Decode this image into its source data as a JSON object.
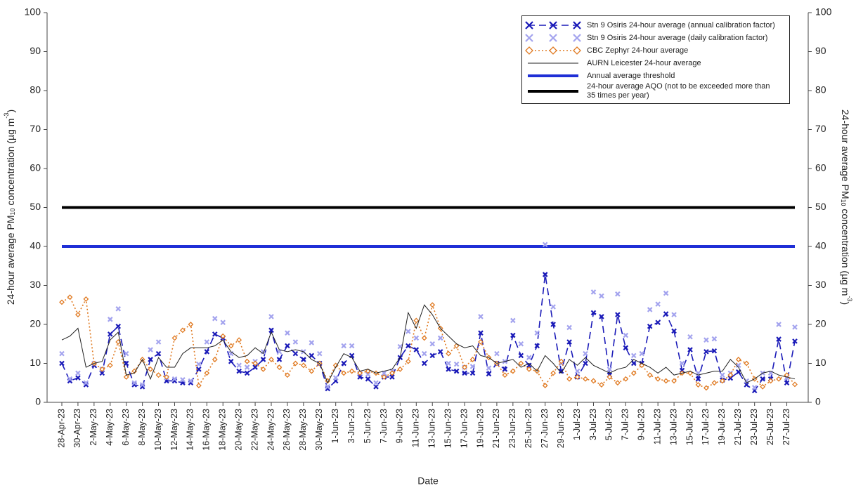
{
  "chart_data": {
    "type": "line",
    "xlabel": "Date",
    "ylabel_parts": [
      "24-hour average PM",
      "10",
      " concentration (µg m",
      "-3",
      ")"
    ],
    "categories": [
      "28-Apr-23",
      null,
      "30-Apr-23",
      null,
      "2-May-23",
      null,
      "4-May-23",
      null,
      "6-May-23",
      null,
      "8-May-23",
      null,
      "10-May-23",
      null,
      "12-May-23",
      null,
      "14-May-23",
      null,
      "16-May-23",
      null,
      "18-May-23",
      null,
      "20-May-23",
      null,
      "22-May-23",
      null,
      "24-May-23",
      null,
      "26-May-23",
      null,
      "28-May-23",
      null,
      "30-May-23",
      null,
      "1-Jun-23",
      null,
      "3-Jun-23",
      null,
      "5-Jun-23",
      null,
      "7-Jun-23",
      null,
      "9-Jun-23",
      null,
      "11-Jun-23",
      null,
      "13-Jun-23",
      null,
      "15-Jun-23",
      null,
      "17-Jun-23",
      null,
      "19-Jun-23",
      null,
      "21-Jun-23",
      null,
      "23-Jun-23",
      null,
      "25-Jun-23",
      null,
      "27-Jun-23",
      null,
      "29-Jun-23",
      null,
      "1-Jul-23",
      null,
      "3-Jul-23",
      null,
      "5-Jul-23",
      null,
      "7-Jul-23",
      null,
      "9-Jul-23",
      null,
      "11-Jul-23",
      null,
      "13-Jul-23",
      null,
      "15-Jul-23",
      null,
      "17-Jul-23",
      null,
      "19-Jul-23",
      null,
      "21-Jul-23",
      null,
      "23-Jul-23",
      null,
      "25-Jul-23",
      null,
      "27-Jul-23",
      null
    ],
    "series": [
      {
        "name": "Stn 9 Osiris 24-hour average (annual calibration factor)",
        "color": "#1a1ab8",
        "line": "dashed",
        "marker": "x",
        "values": [
          10,
          5.5,
          6.3,
          4.5,
          9.5,
          7.5,
          17.5,
          19.5,
          10,
          4.5,
          4,
          11,
          12.5,
          5.5,
          5.5,
          5,
          5,
          8.5,
          13,
          17.5,
          16.5,
          10.5,
          8,
          7.5,
          9,
          11,
          18.5,
          11,
          14.5,
          12.5,
          11,
          12,
          10,
          3.5,
          5.5,
          10,
          12,
          6.5,
          6,
          4,
          6.5,
          6.5,
          11.5,
          14.5,
          13.5,
          10,
          12,
          13,
          8.5,
          8,
          7.5,
          7.5,
          17.8,
          7.3,
          10,
          8.5,
          17.2,
          12,
          9.5,
          14.5,
          32.8,
          20,
          8,
          15.5,
          6.5,
          10,
          23,
          22,
          7,
          22.5,
          14,
          10,
          10,
          19.5,
          20.5,
          22.7,
          18.3,
          8.2,
          13.5,
          6,
          13,
          13.2,
          5.7,
          6.2,
          7.8,
          4.5,
          3,
          6,
          6,
          16.2,
          5,
          15.7
        ]
      },
      {
        "name": "Stn 9 Osiris 24-hour average (daily calibration factor)",
        "color": "#a3a3ee",
        "line": "none",
        "marker": "x",
        "values": [
          12.5,
          6,
          7.5,
          5,
          10,
          8.5,
          21.3,
          24,
          12.5,
          5,
          4.5,
          13.5,
          15.5,
          6.3,
          6,
          5.8,
          5.5,
          9.8,
          15.5,
          21.5,
          20.5,
          12.5,
          9.5,
          9,
          10.5,
          13,
          22,
          13,
          17.8,
          15.5,
          13,
          15.3,
          12.5,
          4,
          6.3,
          14.5,
          14.5,
          7.5,
          7.2,
          5,
          7.5,
          8,
          14.3,
          18.2,
          16.5,
          12.5,
          15,
          16.5,
          10,
          9.8,
          9,
          9.2,
          22,
          8.8,
          12.5,
          10.5,
          21,
          15,
          11.5,
          17.8,
          40.5,
          24.5,
          10,
          19.2,
          8,
          12.5,
          28.3,
          27.3,
          8.5,
          27.8,
          17.2,
          12,
          12.5,
          23.8,
          25.2,
          28,
          22.5,
          10,
          16.8,
          7.5,
          16,
          16.3,
          7,
          7.5,
          9.5,
          5.5,
          3.8,
          7.5,
          7.5,
          20,
          6.3,
          19.3
        ]
      },
      {
        "name": "CBC Zephyr 24-hour average",
        "color": "#e07a22",
        "line": "dotted",
        "marker": "diamond",
        "values": [
          25.7,
          27,
          22.5,
          26.5,
          10,
          8.5,
          9.5,
          15.5,
          6.5,
          8,
          11,
          8.5,
          7,
          6.5,
          16.5,
          18.5,
          20,
          4.3,
          7.5,
          11,
          17,
          14.5,
          16,
          10.5,
          10,
          8.5,
          11,
          9,
          7,
          10,
          9.5,
          8,
          10,
          5.5,
          9.5,
          7.5,
          8,
          7.5,
          8,
          7.5,
          6.5,
          7.5,
          8.5,
          10.5,
          21,
          16.5,
          25,
          19,
          12.5,
          14.5,
          9,
          11,
          15.5,
          11.5,
          10,
          7,
          8,
          10,
          8.5,
          8,
          4.3,
          7.5,
          10.5,
          6,
          6.5,
          6,
          5.5,
          4.5,
          6.5,
          5,
          6,
          7.5,
          9.5,
          7,
          6,
          5.5,
          5.5,
          7.5,
          7.5,
          4.5,
          3.7,
          5,
          5.5,
          7,
          11,
          10,
          6,
          4,
          5.5,
          6,
          7,
          4.6
        ]
      },
      {
        "name": "AURN Leicester 24-hour average",
        "color": "#222222",
        "line": "solid",
        "marker": "none",
        "values": [
          16,
          17,
          19,
          9,
          10,
          10.5,
          16,
          18,
          7,
          7.5,
          11,
          6,
          11.5,
          9,
          9,
          12.5,
          14,
          14,
          14,
          14.5,
          16,
          13,
          11.5,
          12,
          14,
          12.5,
          18,
          13.5,
          13,
          13.5,
          13,
          11,
          10,
          5,
          9,
          12.5,
          11.5,
          8,
          8.5,
          7.5,
          8,
          8.5,
          11.5,
          23,
          19,
          25,
          22.5,
          19,
          17,
          15,
          14,
          14.5,
          12,
          11.5,
          10,
          10.5,
          11,
          9,
          10,
          8,
          12,
          10,
          7.5,
          11,
          9.5,
          11.5,
          9.5,
          8.5,
          7.5,
          8.5,
          9,
          11,
          10,
          9,
          7.5,
          9,
          7,
          7.5,
          8,
          7,
          7.5,
          8,
          8,
          11,
          9,
          5,
          6,
          7.5,
          8,
          7,
          6.5,
          6
        ]
      }
    ],
    "thresholds": [
      {
        "name": "Annual average threshold",
        "color": "#1f2fd6",
        "value": 40
      },
      {
        "name": "24-hour average AQO (not to be exceeded more than 35 times per year)",
        "color": "#000000",
        "value": 50
      }
    ],
    "ylim": [
      0,
      100
    ],
    "yticks": [
      0,
      10,
      20,
      30,
      40,
      50,
      60,
      70,
      80,
      90,
      100
    ],
    "y2lim": [
      0,
      100
    ],
    "y2ticks": [
      0,
      10,
      20,
      30,
      40,
      50,
      60,
      70,
      80,
      90,
      100
    ],
    "legend": "upper right"
  }
}
